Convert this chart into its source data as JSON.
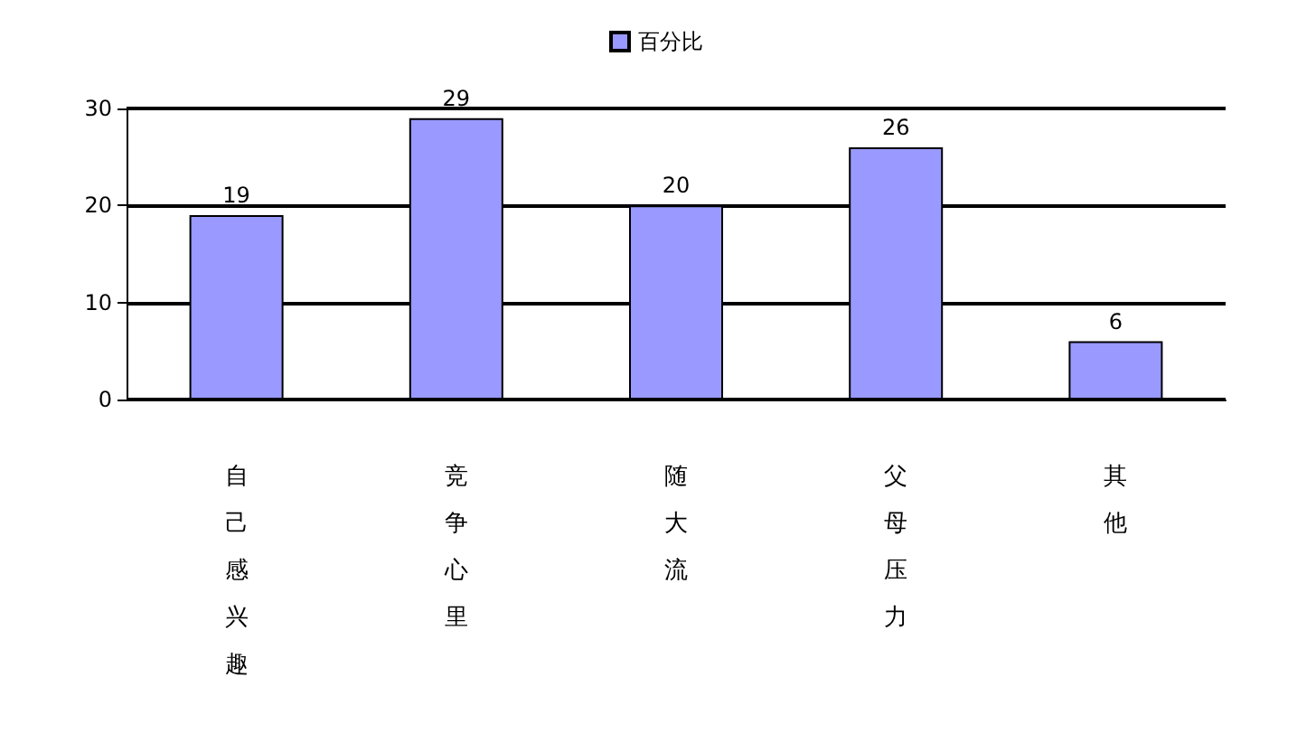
{
  "chart_data": {
    "type": "bar",
    "categories": [
      "自己感兴趣",
      "竞争心里",
      "随大流",
      "父母压力",
      "其他"
    ],
    "series": [
      {
        "name": "百分比",
        "color": "#9999ff",
        "values": [
          19,
          29,
          20,
          26,
          6
        ]
      }
    ],
    "ylim": [
      0,
      30
    ],
    "yticks": [
      0,
      10,
      20,
      30
    ],
    "grid": "y",
    "legend": "top",
    "data_labels": true
  }
}
